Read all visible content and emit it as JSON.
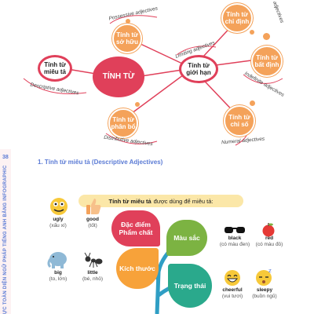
{
  "mindmap": {
    "center": "TÍNH TỪ",
    "descriptive": {
      "label": "Tính từ miêu tả",
      "caption": "Descriptive adjectives"
    },
    "limiting": {
      "label": "Tính từ giới hạn",
      "caption": "Limiting adjectives"
    },
    "possessive": {
      "label": "Tính từ sở hữu",
      "caption": "Possessive adjectives"
    },
    "distributive": {
      "label": "Tính từ phân bổ",
      "caption": "Distributive adjectives"
    },
    "demonstrative": {
      "label": "Tính từ chỉ định",
      "caption": "ve adjectives"
    },
    "indefinite": {
      "label": "Tính từ bất định",
      "caption": "Indefinite adjectives"
    },
    "numeral": {
      "label": "Tính từ chỉ số",
      "caption": "Numeral adjectives"
    }
  },
  "sidebar": {
    "page": "38",
    "text": "ỰC TOÀN DIỆN NGỮ PHÁP TIẾNG ANH BẰNG INFOGRAPHIC"
  },
  "section": {
    "title": "1. Tính từ miêu tả (Descriptive Adjectives)"
  },
  "definition": {
    "bold": "Tính từ miêu tả",
    "rest": "được dùng để miêu tả:"
  },
  "categories": {
    "quality": "Đặc điểm Phẩm chất",
    "color": "Màu sắc",
    "size": "Kích thước",
    "state": "Trạng thái"
  },
  "words": {
    "ugly": {
      "w": "ugly",
      "m": "(xấu xí)"
    },
    "good": {
      "w": "good",
      "m": "(tốt)"
    },
    "big": {
      "w": "big",
      "m": "(to, lớn)"
    },
    "little": {
      "w": "little",
      "m": "(bé, nhỏ)"
    },
    "black": {
      "w": "black",
      "m": "(có màu đen)"
    },
    "red": {
      "w": "red",
      "m": "(có màu đỏ)"
    },
    "cheerful": {
      "w": "cheerful",
      "m": "(vui tươi)"
    },
    "sleepy": {
      "w": "sleepy",
      "m": "(buồn ngủ)"
    }
  }
}
